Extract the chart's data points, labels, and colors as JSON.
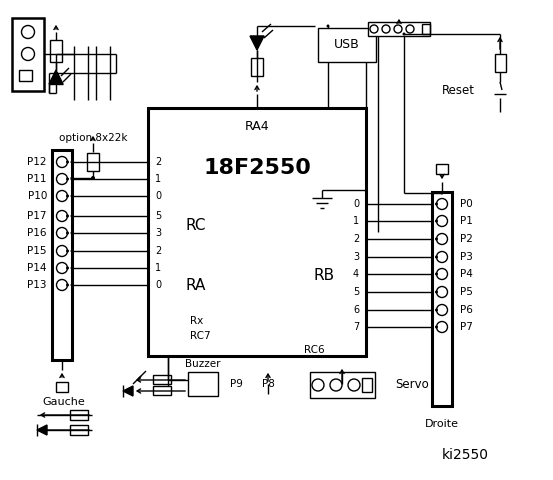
{
  "title": "ki2550",
  "bg_color": "#ffffff",
  "ic_label": "18F2550",
  "ic_sub": "RA4",
  "rc_label": "RC",
  "ra_label": "RA",
  "rb_label": "RB",
  "left_pins_nums": [
    "2",
    "1",
    "0",
    "5",
    "3",
    "2",
    "1",
    "0"
  ],
  "rb_pins_right": [
    "0",
    "1",
    "2",
    "3",
    "4",
    "5",
    "6",
    "7"
  ],
  "left_labels": [
    "P12",
    "P11",
    "P10",
    "P17",
    "P16",
    "P15",
    "P14",
    "P13"
  ],
  "right_labels": [
    "P0",
    "P1",
    "P2",
    "P3",
    "P4",
    "P5",
    "P6",
    "P7"
  ],
  "gauche_text": "Gauche",
  "droite_text": "Droite",
  "option_text": "option 8x22k",
  "buzzer_text": "Buzzer",
  "usb_text": "USB",
  "reset_text": "Reset",
  "servo_text": "Servo",
  "p8_text": "P8",
  "p9_text": "P9",
  "rx_text": "Rx",
  "rc7_text": "RC7",
  "rc6_text": "RC6"
}
